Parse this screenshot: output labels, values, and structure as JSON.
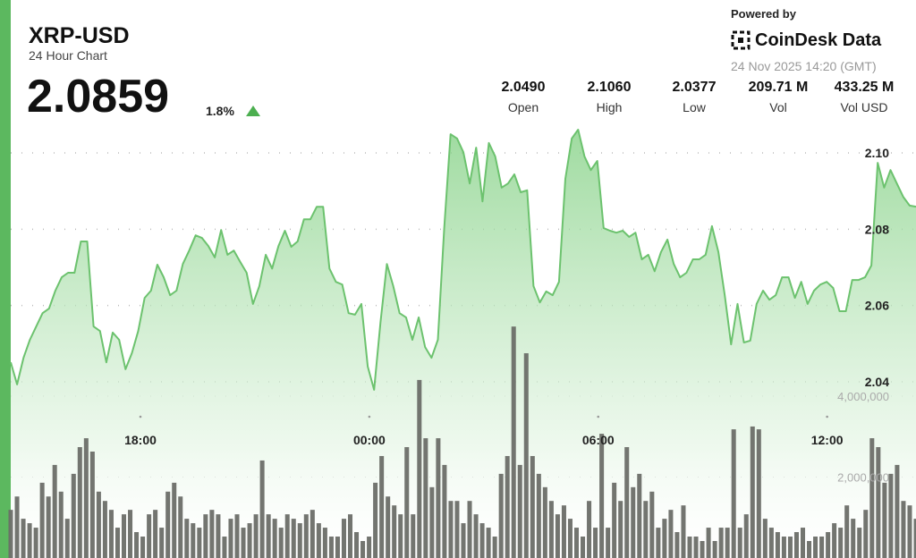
{
  "header": {
    "title": "XRP-USD",
    "subtitle": "24 Hour Chart",
    "price": "2.0859",
    "change": "1.8%",
    "stats": [
      {
        "value": "2.0490",
        "label": "Open"
      },
      {
        "value": "2.1060",
        "label": "High"
      },
      {
        "value": "2.0377",
        "label": "Low"
      },
      {
        "value": "209.71 M",
        "label": "Vol"
      },
      {
        "value": "433.25 M",
        "label": "Vol USD"
      }
    ],
    "powered_by": "Powered by",
    "brand": "CoinDesk Data",
    "timestamp": "24 Nov 2025 14:20 (GMT)"
  },
  "chart_data": {
    "type": "line",
    "xlim": [
      14.6,
      38.33
    ],
    "xticks": [
      {
        "value": 18,
        "label": "18:00"
      },
      {
        "value": 24,
        "label": "00:00"
      },
      {
        "value": 30,
        "label": "06:00"
      },
      {
        "value": 36,
        "label": "12:00"
      }
    ],
    "ylim": [
      1.9938,
      2.1401
    ],
    "yticks": [
      {
        "value": 2.04,
        "label": "2.04"
      },
      {
        "value": 2.06,
        "label": "2.06"
      },
      {
        "value": 2.08,
        "label": "2.08"
      },
      {
        "value": 2.1,
        "label": "2.10"
      }
    ],
    "y2lim": [
      0,
      13790000
    ],
    "y2ticks": [
      {
        "value": 2000000,
        "label": "2,000,000"
      },
      {
        "value": 4000000,
        "label": "4,000,000"
      }
    ],
    "series": [
      {
        "name": "Price",
        "color": "#6cc26e",
        "values": [
          2.0451,
          2.0393,
          2.0463,
          2.051,
          2.0545,
          2.058,
          2.0592,
          2.0639,
          2.0674,
          2.0686,
          2.0686,
          2.0768,
          2.0768,
          2.0545,
          2.0533,
          2.0451,
          2.0529,
          2.051,
          2.0433,
          2.0475,
          2.0533,
          2.062,
          2.0639,
          2.0707,
          2.0674,
          2.0627,
          2.0639,
          2.0709,
          2.0744,
          2.0784,
          2.0777,
          2.0756,
          2.0726,
          2.0798,
          2.0733,
          2.0744,
          2.0714,
          2.0686,
          2.0604,
          2.0651,
          2.0733,
          2.0697,
          2.0756,
          2.0796,
          2.0754,
          2.0768,
          2.0826,
          2.0826,
          2.0859,
          2.0859,
          2.0697,
          2.0662,
          2.0655,
          2.058,
          2.0576,
          2.0604,
          2.044,
          2.0379,
          2.0557,
          2.0709,
          2.0651,
          2.058,
          2.0569,
          2.051,
          2.0569,
          2.0491,
          2.0463,
          2.051,
          2.0803,
          2.1049,
          2.1038,
          2.1002,
          2.092,
          2.1014,
          2.0873,
          2.1026,
          2.0991,
          2.0909,
          2.092,
          2.0944,
          2.0897,
          2.0902,
          2.0651,
          2.0608,
          2.0637,
          2.0627,
          2.0662,
          2.0932,
          2.1038,
          2.1061,
          2.0991,
          2.0955,
          2.0979,
          2.0803,
          2.0796,
          2.0791,
          2.0796,
          2.078,
          2.0791,
          2.0721,
          2.0733,
          2.069,
          2.074,
          2.0773,
          2.0709,
          2.0674,
          2.0686,
          2.0721,
          2.0721,
          2.0733,
          2.0808,
          2.074,
          2.0627,
          2.0498,
          2.0604,
          2.0503,
          2.0508,
          2.0604,
          2.0639,
          2.0615,
          2.0627,
          2.0674,
          2.0674,
          2.062,
          2.0662,
          2.0604,
          2.0639,
          2.0655,
          2.0662,
          2.0646,
          2.0585,
          2.0585,
          2.0667,
          2.0667,
          2.0674,
          2.0705,
          2.0974,
          2.0909,
          2.0955,
          2.092,
          2.0885,
          2.0862,
          2.0859
        ]
      },
      {
        "name": "Volume",
        "color": "#6b6e68",
        "axis": "y2",
        "values": [
          1190000,
          1520000,
          970000,
          860000,
          750000,
          1860000,
          1520000,
          2300000,
          1640000,
          970000,
          2080000,
          2740000,
          2960000,
          2630000,
          1640000,
          1410000,
          1190000,
          750000,
          1080000,
          1190000,
          640000,
          530000,
          1080000,
          1190000,
          750000,
          1640000,
          1860000,
          1520000,
          970000,
          860000,
          750000,
          1080000,
          1190000,
          1080000,
          530000,
          970000,
          1080000,
          750000,
          860000,
          1080000,
          2410000,
          1080000,
          970000,
          750000,
          1080000,
          970000,
          860000,
          1080000,
          1190000,
          860000,
          750000,
          530000,
          530000,
          970000,
          1080000,
          640000,
          420000,
          530000,
          1860000,
          2520000,
          1520000,
          1300000,
          1080000,
          2740000,
          1080000,
          4400000,
          2960000,
          1750000,
          2960000,
          2300000,
          1410000,
          1410000,
          860000,
          1410000,
          1080000,
          860000,
          750000,
          530000,
          2080000,
          2520000,
          5720000,
          2300000,
          5060000,
          2520000,
          2080000,
          1750000,
          1410000,
          1080000,
          1300000,
          970000,
          750000,
          530000,
          1410000,
          750000,
          3070000,
          750000,
          1860000,
          1410000,
          2740000,
          1750000,
          2080000,
          1410000,
          1640000,
          750000,
          970000,
          1190000,
          640000,
          1300000,
          530000,
          530000,
          420000,
          750000,
          420000,
          750000,
          750000,
          3180000,
          750000,
          1080000,
          3250000,
          3180000,
          970000,
          750000,
          640000,
          530000,
          530000,
          640000,
          750000,
          420000,
          530000,
          530000,
          640000,
          860000,
          750000,
          1300000,
          970000,
          750000,
          1190000,
          2960000,
          2740000,
          1860000,
          2080000,
          2300000,
          1410000,
          1300000,
          970000
        ]
      }
    ]
  }
}
